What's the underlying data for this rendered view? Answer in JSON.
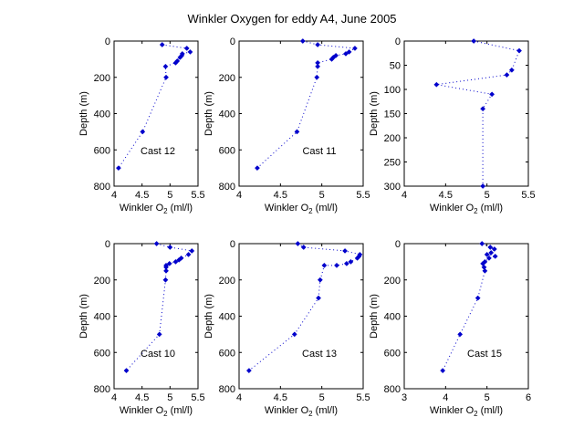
{
  "figure": {
    "title": "Winkler Oxygen for eddy A4, June 2005",
    "marker_color": "#0000cc"
  },
  "chart_data": [
    {
      "type": "scatter",
      "annotation": "Cast 12",
      "xlabel_main": "Winkler O",
      "xlabel_sub": "2",
      "xlabel_unit": " (ml/l)",
      "ylabel": "Depth (m)",
      "xlim": [
        4,
        5.5
      ],
      "ylim": [
        0,
        800
      ],
      "y_reversed": true,
      "xticks": [
        "4",
        "4.5",
        "5",
        "5.5"
      ],
      "yticks": [
        "0",
        "200",
        "400",
        "600",
        "800"
      ],
      "x": [
        4.86,
        5.3,
        5.36,
        5.22,
        5.21,
        5.18,
        5.13,
        5.1,
        4.92,
        4.93,
        4.51,
        4.08
      ],
      "y": [
        20,
        40,
        60,
        70,
        80,
        90,
        110,
        120,
        140,
        200,
        500,
        700
      ]
    },
    {
      "type": "scatter",
      "annotation": "Cast 11",
      "xlabel_main": "Winkler O",
      "xlabel_sub": "2",
      "xlabel_unit": " (ml/l)",
      "ylabel": "Depth (m)",
      "xlim": [
        4,
        5.5
      ],
      "ylim": [
        0,
        800
      ],
      "y_reversed": true,
      "xticks": [
        "4",
        "4.5",
        "5",
        "5.5"
      ],
      "yticks": [
        "0",
        "200",
        "400",
        "600",
        "800"
      ],
      "x": [
        4.77,
        4.95,
        5.4,
        5.33,
        5.29,
        5.17,
        5.14,
        5.12,
        4.95,
        4.95,
        4.94,
        4.7,
        4.22
      ],
      "y": [
        0,
        20,
        40,
        60,
        70,
        80,
        90,
        100,
        120,
        140,
        200,
        500,
        700
      ]
    },
    {
      "type": "scatter",
      "annotation": "",
      "xlabel_main": "Winkler O",
      "xlabel_sub": "2",
      "xlabel_unit": " (ml/l)",
      "ylabel": "Depth (m)",
      "xlim": [
        4,
        5.5
      ],
      "ylim": [
        0,
        300
      ],
      "y_reversed": true,
      "xticks": [
        "4",
        "4.5",
        "5",
        "5.5"
      ],
      "yticks": [
        "0",
        "50",
        "100",
        "150",
        "200",
        "250",
        "300"
      ],
      "x": [
        4.84,
        5.39,
        5.3,
        5.24,
        4.39,
        5.06,
        4.95,
        4.95
      ],
      "y": [
        0,
        20,
        60,
        70,
        90,
        110,
        140,
        300
      ]
    },
    {
      "type": "scatter",
      "annotation": "Cast 10",
      "xlabel_main": "Winkler O",
      "xlabel_sub": "2",
      "xlabel_unit": " (ml/l)",
      "ylabel": "Depth (m)",
      "xlim": [
        4,
        5.5
      ],
      "ylim": [
        0,
        800
      ],
      "y_reversed": true,
      "xticks": [
        "4",
        "4.5",
        "5",
        "5.5"
      ],
      "yticks": [
        "0",
        "200",
        "400",
        "600",
        "800"
      ],
      "x": [
        4.76,
        5.0,
        5.39,
        5.33,
        5.2,
        5.16,
        5.1,
        4.99,
        4.93,
        4.93,
        4.93,
        4.92,
        4.81,
        4.22
      ],
      "y": [
        0,
        20,
        40,
        60,
        80,
        90,
        100,
        110,
        120,
        130,
        150,
        200,
        500,
        700
      ]
    },
    {
      "type": "scatter",
      "annotation": "Cast 13",
      "xlabel_main": "Winkler O",
      "xlabel_sub": "2",
      "xlabel_unit": " (ml/l)",
      "ylabel": "Depth (m)",
      "xlim": [
        4,
        5.5
      ],
      "ylim": [
        0,
        800
      ],
      "y_reversed": true,
      "xticks": [
        "4",
        "4.5",
        "5",
        "5.5"
      ],
      "yticks": [
        "0",
        "200",
        "400",
        "600",
        "800"
      ],
      "x": [
        4.71,
        4.78,
        5.28,
        5.46,
        5.45,
        5.43,
        5.35,
        5.3,
        5.18,
        5.03,
        4.98,
        4.96,
        4.67,
        4.12
      ],
      "y": [
        0,
        20,
        40,
        60,
        70,
        80,
        100,
        110,
        120,
        120,
        200,
        300,
        500,
        700
      ]
    },
    {
      "type": "scatter",
      "annotation": "Cast 15",
      "xlabel_main": "Winkler O",
      "xlabel_sub": "2",
      "xlabel_unit": " (ml/l)",
      "ylabel": "Depth (m)",
      "xlim": [
        3,
        6
      ],
      "ylim": [
        0,
        800
      ],
      "y_reversed": true,
      "xticks": [
        "3",
        "4",
        "5",
        "6"
      ],
      "yticks": [
        "0",
        "200",
        "400",
        "600",
        "800"
      ],
      "x": [
        4.88,
        5.08,
        5.18,
        5.1,
        5.0,
        5.2,
        5.05,
        4.95,
        4.9,
        4.93,
        4.95,
        4.78,
        4.35,
        3.93
      ],
      "y": [
        0,
        20,
        30,
        50,
        60,
        70,
        80,
        100,
        110,
        130,
        150,
        300,
        500,
        700
      ]
    }
  ]
}
